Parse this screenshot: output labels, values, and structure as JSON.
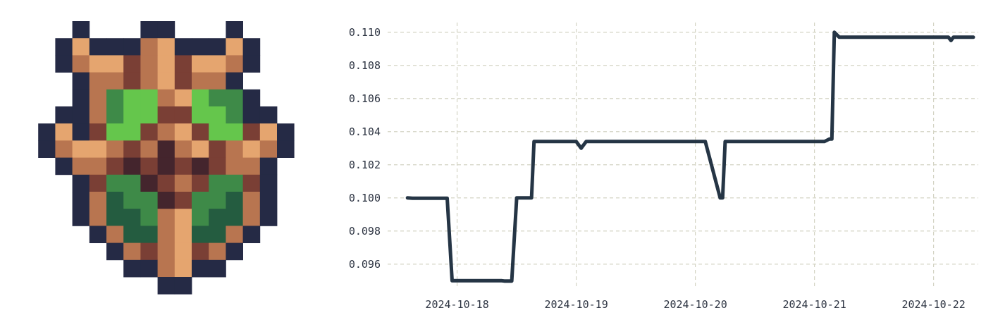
{
  "colors": {
    "series": "#253545",
    "grid": "#d4d4c4",
    "tick_text": "#2d3442",
    "pixel_palette": {
      "N": "#252a45",
      "O": "#e5a56f",
      "M": "#b87550",
      "B": "#7a3f35",
      "D": "#44252d",
      "L": "#65c64c",
      "G": "#3e8a48",
      "F": "#245c40"
    }
  },
  "logo": {
    "name": "pixel-art shield emblem",
    "rows": [
      "...N...NN...N...",
      "..NONNNMONNNON..",
      "..NMOOBMOBOOMN..",
      "...NMMBMOBMMN...",
      "...NMGLLMOLGGN..",
      "..NNMGLLBBLLGNN.",
      ".NONBLLBMOBLLBON",
      ".NMOOMBMDMOBMOMN",
      "..NMMBDBDBDBMMN.",
      "...NBGGDBMBGGBN.",
      "...NMFGGDBGGFMN.",
      "...NMFFGMOGFFMN.",
      "....NMFFMOFFMN..",
      ".....NMBMOBMN...",
      "......NNMONN....",
      "........NN......"
    ]
  },
  "chart_data": {
    "type": "line",
    "title": "",
    "xlabel": "",
    "ylabel": "",
    "x_tick_labels": [
      "2024-10-18",
      "2024-10-19",
      "2024-10-20",
      "2024-10-21",
      "2024-10-22"
    ],
    "y_tick_labels": [
      "0.096",
      "0.098",
      "0.100",
      "0.102",
      "0.104",
      "0.106",
      "0.108",
      "0.110"
    ],
    "x_range": [
      "2024-10-17 10:00",
      "2024-10-22 09:00"
    ],
    "ylim": [
      0.0945,
      0.1105
    ],
    "grid": true,
    "legend": "none",
    "series": [
      {
        "values": [
          {
            "x": "2024-10-17 14:00",
            "y": 0.1
          },
          {
            "x": "2024-10-17 15:00",
            "y": 0.09998
          },
          {
            "x": "2024-10-17 22:00",
            "y": 0.09998
          },
          {
            "x": "2024-10-17 23:00",
            "y": 0.095
          },
          {
            "x": "2024-10-18 09:00",
            "y": 0.095
          },
          {
            "x": "2024-10-18 09:30",
            "y": 0.09498
          },
          {
            "x": "2024-10-18 11:00",
            "y": 0.09498
          },
          {
            "x": "2024-10-18 12:00",
            "y": 0.1
          },
          {
            "x": "2024-10-18 15:00",
            "y": 0.1
          },
          {
            "x": "2024-10-18 15:30",
            "y": 0.1034
          },
          {
            "x": "2024-10-19 00:00",
            "y": 0.1034
          },
          {
            "x": "2024-10-19 01:00",
            "y": 0.103
          },
          {
            "x": "2024-10-19 02:00",
            "y": 0.1034
          },
          {
            "x": "2024-10-20 02:00",
            "y": 0.1034
          },
          {
            "x": "2024-10-20 05:00",
            "y": 0.1
          },
          {
            "x": "2024-10-20 05:30",
            "y": 0.1
          },
          {
            "x": "2024-10-20 06:00",
            "y": 0.1034
          },
          {
            "x": "2024-10-21 02:00",
            "y": 0.1034
          },
          {
            "x": "2024-10-21 03:00",
            "y": 0.10355
          },
          {
            "x": "2024-10-21 03:30",
            "y": 0.10355
          },
          {
            "x": "2024-10-21 04:00",
            "y": 0.11
          },
          {
            "x": "2024-10-21 05:00",
            "y": 0.1097
          },
          {
            "x": "2024-10-22 03:00",
            "y": 0.1097
          },
          {
            "x": "2024-10-22 03:30",
            "y": 0.1095
          },
          {
            "x": "2024-10-22 04:00",
            "y": 0.1097
          },
          {
            "x": "2024-10-22 08:00",
            "y": 0.1097
          }
        ]
      }
    ]
  }
}
